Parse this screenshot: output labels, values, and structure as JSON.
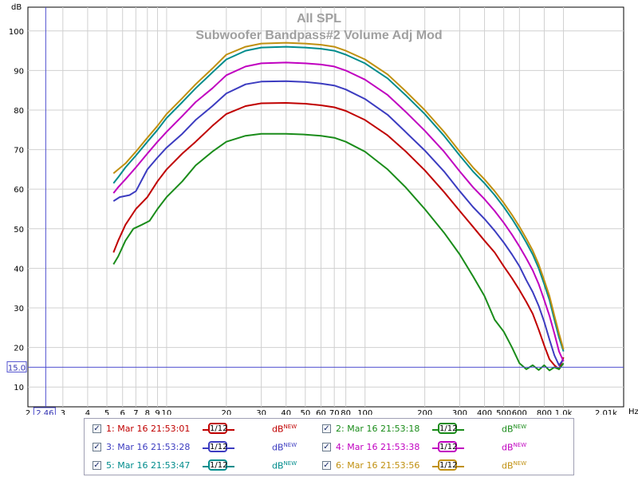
{
  "chart_data": {
    "type": "line",
    "title": "All SPL",
    "subtitle": "Subwoofer Bandpass#2 Volume Adj Mod",
    "ylabel": "dB",
    "xlabel": "Hz",
    "xscale": "log",
    "xlim": [
      2,
      2010
    ],
    "ylim": [
      5,
      106
    ],
    "yticks": [
      10,
      20,
      30,
      40,
      50,
      60,
      70,
      80,
      90,
      100
    ],
    "xticks": [
      {
        "v": 2,
        "l": "2"
      },
      {
        "v": 3,
        "l": "3"
      },
      {
        "v": 4,
        "l": "4"
      },
      {
        "v": 5,
        "l": "5"
      },
      {
        "v": 6,
        "l": "6"
      },
      {
        "v": 7,
        "l": "7"
      },
      {
        "v": 8,
        "l": "8"
      },
      {
        "v": 9,
        "l": "9"
      },
      {
        "v": 10,
        "l": "10"
      },
      {
        "v": 20,
        "l": "20"
      },
      {
        "v": 30,
        "l": "30"
      },
      {
        "v": 40,
        "l": "40"
      },
      {
        "v": 50,
        "l": "50"
      },
      {
        "v": 60,
        "l": "60"
      },
      {
        "v": 70,
        "l": "70"
      },
      {
        "v": 80,
        "l": "80"
      },
      {
        "v": 100,
        "l": "100"
      },
      {
        "v": 200,
        "l": "200"
      },
      {
        "v": 300,
        "l": "300"
      },
      {
        "v": 400,
        "l": "400"
      },
      {
        "v": 500,
        "l": "500"
      },
      {
        "v": 600,
        "l": "600"
      },
      {
        "v": 800,
        "l": "800"
      },
      {
        "v": 1000,
        "l": "1.0k"
      },
      {
        "v": 2010,
        "l": "2.01k"
      }
    ],
    "cursor": {
      "x": 2.46,
      "x_label": "2.46",
      "y": 15.0,
      "y_label": "15.0"
    },
    "grid": true,
    "legend_position": "bottom",
    "series": [
      {
        "name": "1: Mar 16 21:53:01",
        "color": "#c00000",
        "x": [
          5.4,
          5.7,
          6.2,
          7,
          8,
          9,
          10,
          12,
          14,
          17,
          20,
          25,
          30,
          40,
          50,
          60,
          70,
          80,
          100,
          130,
          160,
          200,
          250,
          300,
          350,
          400,
          450,
          500,
          550,
          600,
          650,
          700,
          750,
          800,
          850,
          900,
          950,
          1000
        ],
        "y": [
          44,
          47,
          51,
          55,
          58,
          62,
          65,
          69,
          72,
          76,
          79,
          81,
          81.7,
          81.8,
          81.6,
          81.2,
          80.7,
          79.8,
          77.5,
          73.6,
          69.6,
          64.8,
          59.3,
          54.5,
          50.5,
          47,
          44,
          40.5,
          37.5,
          34.5,
          31.5,
          28.5,
          24.5,
          20.5,
          17,
          15.5,
          14.5,
          17.5
        ]
      },
      {
        "name": "2: Mar 16 21:53:18",
        "color": "#1a8c1a",
        "x": [
          5.4,
          5.7,
          6.2,
          6.8,
          7.5,
          8.2,
          9,
          10,
          12,
          14,
          17,
          20,
          25,
          30,
          40,
          50,
          60,
          70,
          80,
          100,
          130,
          160,
          200,
          250,
          300,
          350,
          400,
          450,
          500,
          550,
          600,
          650,
          700,
          750,
          800,
          850,
          900,
          950,
          1000
        ],
        "y": [
          41,
          43,
          47,
          50,
          51,
          52,
          55,
          58,
          62,
          66,
          69.5,
          72,
          73.5,
          74,
          74,
          73.8,
          73.5,
          73,
          72,
          69.5,
          65,
          60.5,
          55,
          49,
          43.5,
          38,
          33,
          27,
          24,
          20,
          16,
          14.5,
          15.5,
          14.3,
          15.5,
          14.2,
          15,
          14.5,
          16
        ]
      },
      {
        "name": "3: Mar 16 21:53:28",
        "color": "#3c3cc0",
        "x": [
          5.4,
          5.8,
          6.5,
          7,
          8,
          9,
          10,
          12,
          14,
          17,
          20,
          25,
          30,
          40,
          50,
          60,
          70,
          80,
          100,
          130,
          160,
          200,
          250,
          300,
          350,
          400,
          450,
          500,
          550,
          600,
          650,
          700,
          750,
          800,
          850,
          900,
          950,
          1000
        ],
        "y": [
          57,
          58,
          58.5,
          59.5,
          65,
          68,
          70.5,
          74,
          77.5,
          81,
          84.2,
          86.5,
          87.2,
          87.3,
          87.1,
          86.7,
          86.2,
          85.2,
          82.8,
          78.8,
          74.5,
          69.8,
          64.5,
          59.5,
          55.5,
          52.5,
          49.5,
          46.5,
          43.5,
          40.5,
          37,
          34,
          30.5,
          26.5,
          22,
          18,
          15.5,
          17
        ]
      },
      {
        "name": "4: Mar 16 21:53:38",
        "color": "#c000c0",
        "x": [
          5.4,
          5.7,
          6.2,
          7,
          8,
          9,
          10,
          12,
          14,
          17,
          20,
          25,
          30,
          40,
          50,
          60,
          70,
          80,
          100,
          130,
          160,
          200,
          250,
          300,
          350,
          400,
          450,
          500,
          550,
          600,
          650,
          700,
          750,
          800,
          850,
          900,
          950,
          1000
        ],
        "y": [
          59,
          60.5,
          62.5,
          65.5,
          69,
          72,
          74.5,
          78.5,
          82,
          85.5,
          88.8,
          91,
          91.8,
          92,
          91.8,
          91.5,
          91,
          90,
          87.7,
          83.8,
          79.6,
          74.8,
          69.5,
          64.5,
          60.5,
          57.5,
          54.5,
          51.5,
          48.5,
          45.5,
          42.5,
          39.5,
          36,
          32,
          28,
          23.5,
          19,
          16.5
        ]
      },
      {
        "name": "5: Mar 16 21:53:47",
        "color": "#008c8c",
        "x": [
          5.4,
          5.7,
          6.2,
          7,
          8,
          9,
          10,
          12,
          14,
          17,
          20,
          25,
          30,
          40,
          50,
          60,
          70,
          80,
          100,
          130,
          160,
          200,
          250,
          300,
          350,
          400,
          450,
          500,
          550,
          600,
          650,
          700,
          750,
          800,
          850,
          900,
          950,
          1000
        ],
        "y": [
          61.5,
          63,
          65.5,
          68.5,
          72,
          75,
          78,
          82,
          85.5,
          89.5,
          92.8,
          95,
          95.8,
          96,
          95.8,
          95.5,
          95,
          94,
          91.8,
          88,
          83.8,
          79,
          73.5,
          68.5,
          64.5,
          61.5,
          58.5,
          55.5,
          52.5,
          49.5,
          46.5,
          43.5,
          40,
          36,
          32,
          27,
          22.5,
          19
        ]
      },
      {
        "name": "6: Mar 16 21:53:56",
        "color": "#c09010",
        "x": [
          5.4,
          5.7,
          6.2,
          7,
          8,
          9,
          10,
          12,
          14,
          17,
          20,
          25,
          30,
          40,
          50,
          60,
          70,
          80,
          100,
          130,
          160,
          200,
          250,
          300,
          350,
          400,
          450,
          500,
          550,
          600,
          650,
          700,
          750,
          800,
          850,
          900,
          950,
          1000
        ],
        "y": [
          64,
          65,
          66.5,
          69.5,
          73,
          76,
          79,
          83,
          86.5,
          90.5,
          94,
          96,
          96.8,
          97,
          96.8,
          96.5,
          96,
          95,
          92.8,
          89,
          84.8,
          80,
          74.5,
          69.5,
          65.5,
          62.5,
          59.5,
          56.5,
          53.5,
          50.5,
          47.5,
          44.5,
          41,
          37,
          33,
          28,
          23.5,
          19.5
        ]
      }
    ]
  },
  "legend": {
    "smooth_label": "1/12",
    "unit_label": "dB",
    "unit_sup": "NEW",
    "check_mark": "✓"
  }
}
